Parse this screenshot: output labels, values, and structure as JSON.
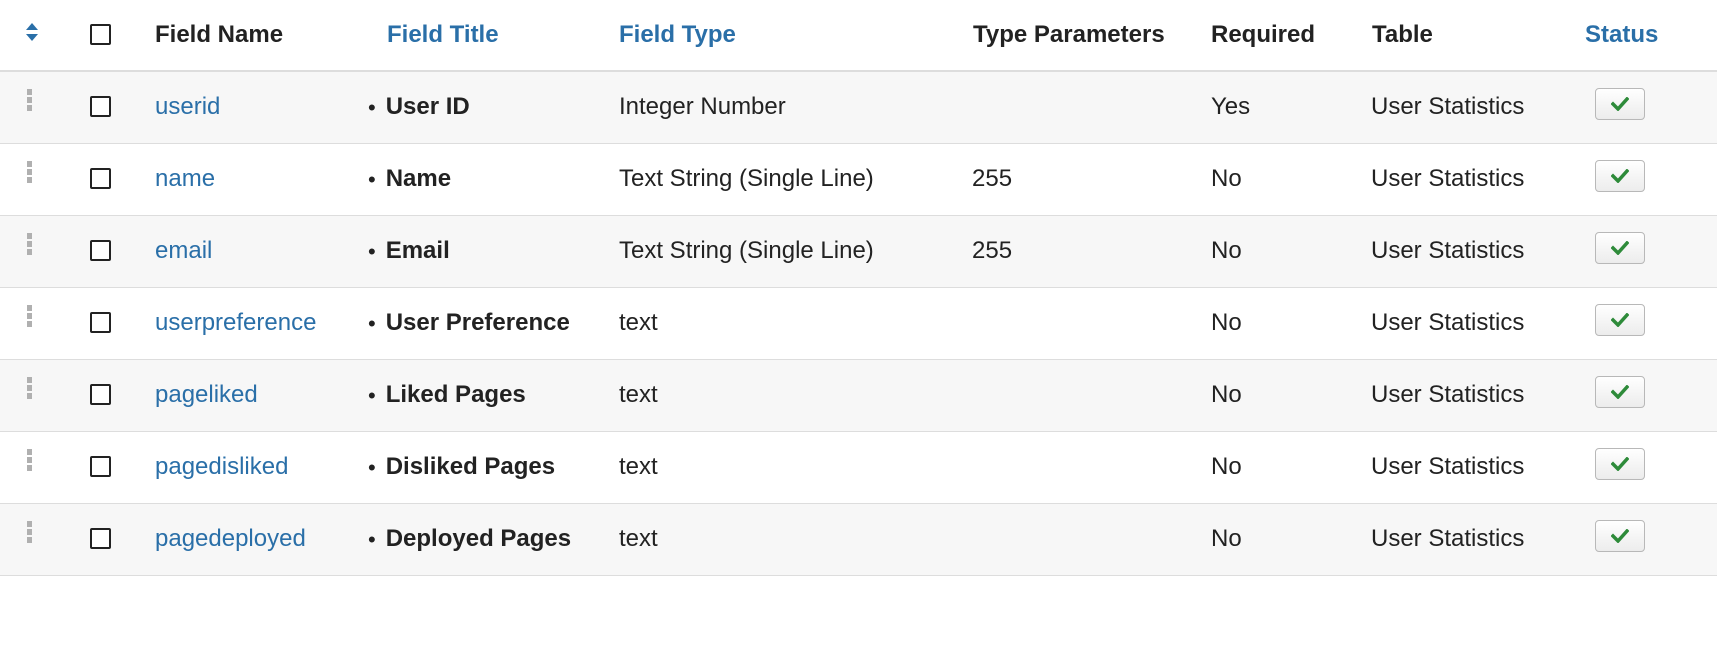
{
  "header": {
    "field_name": "Field Name",
    "field_title": "Field Title",
    "field_type": "Field Type",
    "type_parameters": "Type Parameters",
    "required": "Required",
    "table": "Table",
    "status": "Status"
  },
  "icons": {
    "sort": "sort-icon",
    "drag": "drag-handle-icon",
    "status": "checkmark-icon"
  },
  "colors": {
    "link": "#2a6fa8",
    "check": "#2e8b3a"
  },
  "rows": [
    {
      "name": "userid",
      "title": "User ID",
      "type": "Integer Number",
      "params": "",
      "required": "Yes",
      "table": "User Statistics"
    },
    {
      "name": "name",
      "title": "Name",
      "type": "Text String (Single Line)",
      "params": "255",
      "required": "No",
      "table": "User Statistics"
    },
    {
      "name": "email",
      "title": "Email",
      "type": "Text String (Single Line)",
      "params": "255",
      "required": "No",
      "table": "User Statistics"
    },
    {
      "name": "userpreference",
      "title": "User Preference",
      "type": "text",
      "params": "",
      "required": "No",
      "table": "User Statistics"
    },
    {
      "name": "pageliked",
      "title": "Liked Pages",
      "type": "text",
      "params": "",
      "required": "No",
      "table": "User Statistics"
    },
    {
      "name": "pagedisliked",
      "title": "Disliked Pages",
      "type": "text",
      "params": "",
      "required": "No",
      "table": "User Statistics"
    },
    {
      "name": "pagedeployed",
      "title": "Deployed Pages",
      "type": "text",
      "params": "",
      "required": "No",
      "table": "User Statistics"
    }
  ]
}
